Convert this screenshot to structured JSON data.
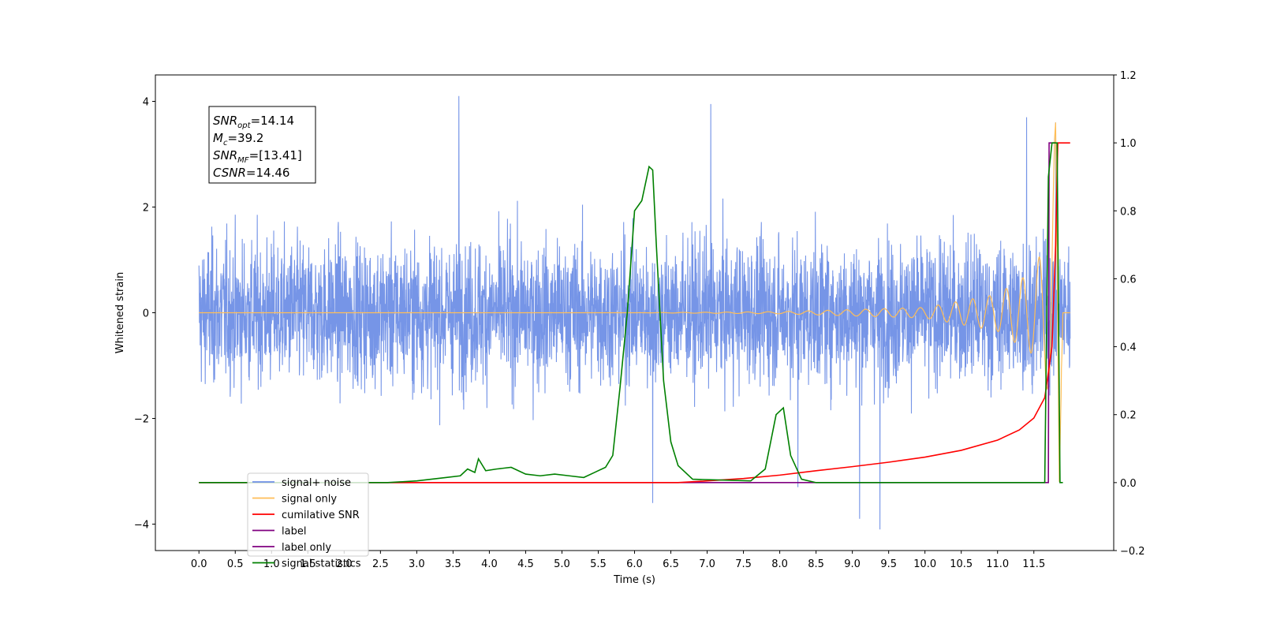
{
  "chart_data": {
    "type": "line",
    "title": "",
    "xlabel": "Time (s)",
    "ylabel": "Whitened strain",
    "ylabel_right": "",
    "xlim": [
      -0.6,
      12.6
    ],
    "ylim": [
      -4.5,
      4.5
    ],
    "ylim_right": [
      -0.2,
      1.2
    ],
    "x_ticks": [
      "0.0",
      "0.5",
      "1.0",
      "1.5",
      "2.0",
      "2.5",
      "3.0",
      "3.5",
      "4.0",
      "4.5",
      "5.0",
      "5.5",
      "6.0",
      "6.5",
      "7.0",
      "7.5",
      "8.0",
      "8.5",
      "9.0",
      "9.5",
      "10.0",
      "10.5",
      "11.0",
      "11.5"
    ],
    "y_ticks": [
      "4",
      "2",
      "0",
      "−2",
      "−4"
    ],
    "y_ticks_right": [
      "1.2",
      "1.0",
      "0.8",
      "0.6",
      "0.4",
      "0.2",
      "0.0",
      "−0.2"
    ],
    "grid": false,
    "legend_position": "lower-left",
    "annotation": {
      "lines": [
        {
          "base": "SNR",
          "sub": "opt",
          "rest": "=14.14"
        },
        {
          "base": "M",
          "sub": "c",
          "rest": "=39.2"
        },
        {
          "base": "SNR",
          "sub": "MF",
          "rest": "=[13.41]"
        },
        {
          "base": "CSNR",
          "sub": "",
          "rest": "=14.46"
        }
      ]
    },
    "series": [
      {
        "name": "signal+ noise",
        "axis": "left",
        "color": "#6f8fe6",
        "description_values": {
          "x_range": [
            0.0,
            12.0
          ],
          "envelope_typical": [
            -2.0,
            2.0
          ],
          "peaks_high": [
            [
              3.58,
              4.1
            ],
            [
              7.05,
              3.95
            ],
            [
              11.4,
              3.7
            ],
            [
              11.8,
              3.6
            ]
          ],
          "peaks_low": [
            [
              6.25,
              -3.6
            ],
            [
              9.1,
              -3.9
            ],
            [
              9.38,
              -4.1
            ],
            [
              8.25,
              -3.3
            ]
          ]
        }
      },
      {
        "name": "signal only",
        "axis": "left",
        "color": "#ffbe57",
        "points": [
          [
            0.0,
            0.0
          ],
          [
            6.0,
            0.0
          ],
          [
            8.0,
            0.02
          ],
          [
            10.0,
            0.1
          ],
          [
            11.0,
            0.35
          ],
          [
            11.5,
            0.8
          ],
          [
            11.7,
            1.5
          ],
          [
            11.8,
            3.6
          ],
          [
            11.85,
            -3.2
          ],
          [
            11.9,
            0.0
          ],
          [
            12.0,
            0.0
          ]
        ]
      },
      {
        "name": "cumilative SNR",
        "axis": "right",
        "color": "#ff0000",
        "points": [
          [
            0.0,
            0.0
          ],
          [
            6.6,
            0.0
          ],
          [
            7.0,
            0.005
          ],
          [
            7.5,
            0.012
          ],
          [
            8.0,
            0.022
          ],
          [
            8.5,
            0.035
          ],
          [
            9.0,
            0.047
          ],
          [
            9.5,
            0.06
          ],
          [
            10.0,
            0.075
          ],
          [
            10.5,
            0.095
          ],
          [
            11.0,
            0.125
          ],
          [
            11.3,
            0.155
          ],
          [
            11.5,
            0.19
          ],
          [
            11.65,
            0.25
          ],
          [
            11.75,
            0.4
          ],
          [
            11.8,
            0.7
          ],
          [
            11.83,
            1.0
          ],
          [
            12.0,
            1.0
          ]
        ]
      },
      {
        "name": "label",
        "axis": "right",
        "color": "#800080",
        "points": [
          [
            0.0,
            0.0
          ],
          [
            11.7,
            0.0
          ],
          [
            11.71,
            1.0
          ],
          [
            11.8,
            1.0
          ]
        ]
      },
      {
        "name": "label only",
        "axis": "right",
        "color": "#800080"
      },
      {
        "name": "signal statistics",
        "axis": "right",
        "color": "#008000",
        "points": [
          [
            0.0,
            0.0
          ],
          [
            2.6,
            0.0
          ],
          [
            3.0,
            0.005
          ],
          [
            3.2,
            0.01
          ],
          [
            3.4,
            0.015
          ],
          [
            3.6,
            0.02
          ],
          [
            3.7,
            0.04
          ],
          [
            3.8,
            0.03
          ],
          [
            3.85,
            0.07
          ],
          [
            3.95,
            0.035
          ],
          [
            4.1,
            0.04
          ],
          [
            4.3,
            0.045
          ],
          [
            4.5,
            0.025
          ],
          [
            4.7,
            0.02
          ],
          [
            4.9,
            0.025
          ],
          [
            5.1,
            0.02
          ],
          [
            5.3,
            0.015
          ],
          [
            5.45,
            0.03
          ],
          [
            5.6,
            0.045
          ],
          [
            5.7,
            0.08
          ],
          [
            5.8,
            0.28
          ],
          [
            5.9,
            0.5
          ],
          [
            6.0,
            0.8
          ],
          [
            6.1,
            0.83
          ],
          [
            6.2,
            0.93
          ],
          [
            6.25,
            0.92
          ],
          [
            6.3,
            0.7
          ],
          [
            6.4,
            0.3
          ],
          [
            6.5,
            0.12
          ],
          [
            6.6,
            0.05
          ],
          [
            6.8,
            0.01
          ],
          [
            7.6,
            0.005
          ],
          [
            7.8,
            0.04
          ],
          [
            7.95,
            0.2
          ],
          [
            8.05,
            0.22
          ],
          [
            8.15,
            0.08
          ],
          [
            8.3,
            0.01
          ],
          [
            8.5,
            0.0
          ],
          [
            11.65,
            0.0
          ],
          [
            11.7,
            0.9
          ],
          [
            11.75,
            1.0
          ],
          [
            11.82,
            1.0
          ],
          [
            11.86,
            0.0
          ],
          [
            11.9,
            0.0
          ]
        ]
      }
    ]
  }
}
